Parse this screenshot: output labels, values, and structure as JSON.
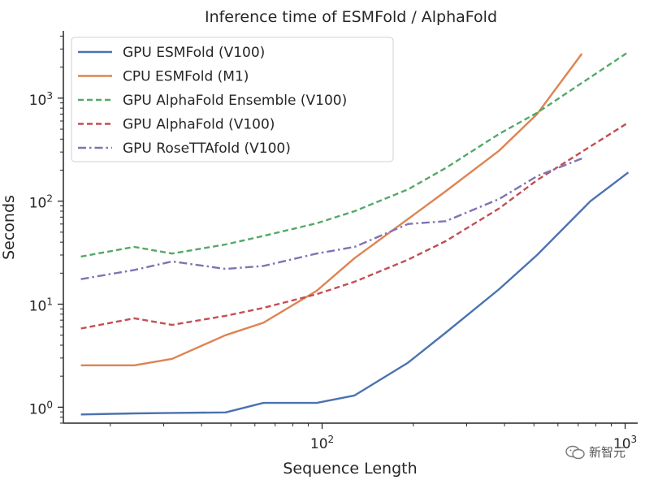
{
  "chart_data": {
    "type": "line",
    "title": "Inference time of ESMFold / AlphaFold",
    "xlabel": "Sequence Length",
    "ylabel": "Seconds",
    "xscale": "log",
    "yscale": "log",
    "xlim": [
      14,
      1100
    ],
    "ylim": [
      0.7,
      4500
    ],
    "x_major_ticks": [
      {
        "value": 100,
        "label": "10^2"
      },
      {
        "value": 1000,
        "label": "10^3"
      }
    ],
    "y_major_ticks": [
      {
        "value": 1,
        "label": "10^0"
      },
      {
        "value": 10,
        "label": "10^1"
      },
      {
        "value": 100,
        "label": "10^2"
      },
      {
        "value": 1000,
        "label": "10^3"
      }
    ],
    "legend_position": "top-left",
    "grid": false,
    "series": [
      {
        "name": "GPU ESMFold (V100)",
        "color": "#4c72b0",
        "style": "solid",
        "x": [
          16,
          24,
          32,
          48,
          64,
          96,
          128,
          192,
          256,
          384,
          512,
          768,
          1024
        ],
        "y": [
          0.85,
          0.87,
          0.88,
          0.89,
          1.1,
          1.1,
          1.3,
          2.7,
          5.3,
          14,
          30,
          100,
          190
        ]
      },
      {
        "name": "CPU ESMFold (M1)",
        "color": "#dd8452",
        "style": "solid",
        "x": [
          16,
          24,
          32,
          48,
          64,
          96,
          128,
          192,
          256,
          384,
          512,
          720
        ],
        "y": [
          2.55,
          2.55,
          2.95,
          5,
          6.6,
          13.5,
          28,
          67,
          125,
          310,
          700,
          2700
        ]
      },
      {
        "name": "GPU AlphaFold Ensemble (V100)",
        "color": "#55a868",
        "style": "dashed",
        "x": [
          16,
          24,
          32,
          48,
          64,
          96,
          128,
          192,
          256,
          384,
          512,
          1024
        ],
        "y": [
          29,
          36,
          31,
          38,
          46,
          61,
          80,
          130,
          210,
          450,
          720,
          2800
        ]
      },
      {
        "name": "GPU AlphaFold (V100)",
        "color": "#c44e52",
        "style": "dashed",
        "x": [
          16,
          24,
          32,
          48,
          64,
          96,
          128,
          192,
          256,
          384,
          512,
          1024
        ],
        "y": [
          5.8,
          7.3,
          6.3,
          7.7,
          9.2,
          12.5,
          16.5,
          27,
          41,
          85,
          160,
          580
        ]
      },
      {
        "name": "GPU RoseTTAfold (V100)",
        "color": "#8172b3",
        "style": "dashdot",
        "x": [
          16,
          24,
          32,
          48,
          64,
          96,
          128,
          192,
          256,
          384,
          512,
          720
        ],
        "y": [
          17.5,
          21.5,
          26,
          22,
          23.5,
          31,
          36,
          60,
          64,
          105,
          175,
          260
        ]
      }
    ]
  },
  "watermark": {
    "text": "新智元",
    "icon": "wechat-icon"
  }
}
